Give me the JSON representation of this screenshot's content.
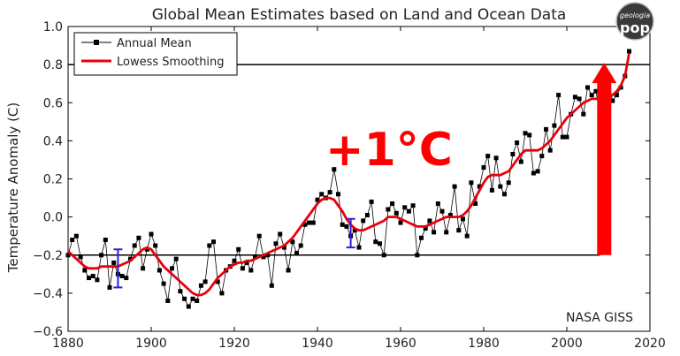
{
  "chart_data": {
    "type": "line",
    "title": "Global Mean Estimates based on Land and Ocean Data",
    "xlabel": "",
    "ylabel": "Temperature Anomaly (C)",
    "xlim": [
      1880,
      2020
    ],
    "ylim": [
      -0.6,
      1.0
    ],
    "grid": false,
    "legend_position": "top-left",
    "x_ticks": [
      "1880",
      "1900",
      "1920",
      "1940",
      "1960",
      "1980",
      "2000",
      "2020"
    ],
    "y_ticks": [
      "−0.6",
      "−0.4",
      "−0.2",
      "0.0",
      "0.2",
      "0.4",
      "0.6",
      "0.8",
      "1.0"
    ],
    "x": [
      1880,
      1881,
      1882,
      1883,
      1884,
      1885,
      1886,
      1887,
      1888,
      1889,
      1890,
      1891,
      1892,
      1893,
      1894,
      1895,
      1896,
      1897,
      1898,
      1899,
      1900,
      1901,
      1902,
      1903,
      1904,
      1905,
      1906,
      1907,
      1908,
      1909,
      1910,
      1911,
      1912,
      1913,
      1914,
      1915,
      1916,
      1917,
      1918,
      1919,
      1920,
      1921,
      1922,
      1923,
      1924,
      1925,
      1926,
      1927,
      1928,
      1929,
      1930,
      1931,
      1932,
      1933,
      1934,
      1935,
      1936,
      1937,
      1938,
      1939,
      1940,
      1941,
      1942,
      1943,
      1944,
      1945,
      1946,
      1947,
      1948,
      1949,
      1950,
      1951,
      1952,
      1953,
      1954,
      1955,
      1956,
      1957,
      1958,
      1959,
      1960,
      1961,
      1962,
      1963,
      1964,
      1965,
      1966,
      1967,
      1968,
      1969,
      1970,
      1971,
      1972,
      1973,
      1974,
      1975,
      1976,
      1977,
      1978,
      1979,
      1980,
      1981,
      1982,
      1983,
      1984,
      1985,
      1986,
      1987,
      1988,
      1989,
      1990,
      1991,
      1992,
      1993,
      1994,
      1995,
      1996,
      1997,
      1998,
      1999,
      2000,
      2001,
      2002,
      2003,
      2004,
      2005,
      2006,
      2007,
      2008,
      2009,
      2010,
      2011,
      2012,
      2013,
      2014,
      2015
    ],
    "series": [
      {
        "name": "Annual Mean",
        "color": "#000000",
        "marker": "square",
        "values": [
          -0.2,
          -0.12,
          -0.1,
          -0.21,
          -0.28,
          -0.32,
          -0.31,
          -0.33,
          -0.2,
          -0.12,
          -0.37,
          -0.24,
          -0.3,
          -0.31,
          -0.32,
          -0.22,
          -0.15,
          -0.11,
          -0.27,
          -0.17,
          -0.09,
          -0.15,
          -0.28,
          -0.35,
          -0.44,
          -0.27,
          -0.22,
          -0.39,
          -0.43,
          -0.47,
          -0.43,
          -0.44,
          -0.36,
          -0.34,
          -0.15,
          -0.13,
          -0.34,
          -0.4,
          -0.28,
          -0.26,
          -0.23,
          -0.17,
          -0.27,
          -0.24,
          -0.28,
          -0.21,
          -0.1,
          -0.21,
          -0.2,
          -0.36,
          -0.14,
          -0.09,
          -0.16,
          -0.28,
          -0.13,
          -0.19,
          -0.15,
          -0.04,
          -0.03,
          -0.03,
          0.09,
          0.12,
          0.1,
          0.13,
          0.25,
          0.12,
          -0.04,
          -0.05,
          -0.1,
          -0.07,
          -0.16,
          -0.02,
          0.01,
          0.08,
          -0.13,
          -0.14,
          -0.2,
          0.04,
          0.07,
          0.02,
          -0.03,
          0.05,
          0.03,
          0.06,
          -0.2,
          -0.11,
          -0.06,
          -0.02,
          -0.08,
          0.07,
          0.03,
          -0.08,
          0.01,
          0.16,
          -0.07,
          -0.01,
          -0.1,
          0.18,
          0.07,
          0.16,
          0.26,
          0.32,
          0.14,
          0.31,
          0.16,
          0.12,
          0.18,
          0.33,
          0.39,
          0.29,
          0.44,
          0.43,
          0.23,
          0.24,
          0.32,
          0.46,
          0.35,
          0.48,
          0.64,
          0.42,
          0.42,
          0.54,
          0.63,
          0.62,
          0.54,
          0.68,
          0.64,
          0.66,
          0.54,
          0.64,
          0.72,
          0.61,
          0.64,
          0.68,
          0.74,
          0.87
        ]
      },
      {
        "name": "Lowess Smoothing",
        "color": "#e8000b",
        "marker": "none",
        "values": [
          -0.18,
          -0.2,
          -0.22,
          -0.24,
          -0.26,
          -0.27,
          -0.27,
          -0.27,
          -0.26,
          -0.26,
          -0.26,
          -0.26,
          -0.26,
          -0.25,
          -0.24,
          -0.23,
          -0.21,
          -0.19,
          -0.17,
          -0.16,
          -0.17,
          -0.2,
          -0.23,
          -0.26,
          -0.28,
          -0.3,
          -0.32,
          -0.34,
          -0.36,
          -0.38,
          -0.4,
          -0.41,
          -0.41,
          -0.4,
          -0.38,
          -0.35,
          -0.32,
          -0.3,
          -0.28,
          -0.26,
          -0.25,
          -0.24,
          -0.24,
          -0.23,
          -0.23,
          -0.22,
          -0.21,
          -0.2,
          -0.19,
          -0.18,
          -0.17,
          -0.16,
          -0.15,
          -0.13,
          -0.11,
          -0.08,
          -0.05,
          -0.02,
          0.01,
          0.04,
          0.07,
          0.09,
          0.1,
          0.1,
          0.09,
          0.06,
          0.03,
          -0.01,
          -0.04,
          -0.06,
          -0.07,
          -0.07,
          -0.06,
          -0.05,
          -0.04,
          -0.03,
          -0.02,
          0.0,
          0.0,
          0.0,
          -0.01,
          -0.02,
          -0.03,
          -0.04,
          -0.05,
          -0.05,
          -0.05,
          -0.04,
          -0.03,
          -0.02,
          -0.01,
          0.0,
          0.0,
          0.0,
          0.0,
          0.01,
          0.03,
          0.06,
          0.1,
          0.14,
          0.18,
          0.21,
          0.22,
          0.22,
          0.22,
          0.23,
          0.24,
          0.27,
          0.3,
          0.33,
          0.35,
          0.35,
          0.35,
          0.35,
          0.36,
          0.38,
          0.4,
          0.43,
          0.46,
          0.49,
          0.52,
          0.54,
          0.56,
          0.58,
          0.6,
          0.61,
          0.62,
          0.62,
          0.62,
          0.62,
          0.63,
          0.64,
          0.66,
          0.69,
          0.74,
          0.86
        ]
      }
    ],
    "error_bars": [
      {
        "x": 1892,
        "low": -0.37,
        "high": -0.17
      },
      {
        "x": 1948,
        "low": -0.16,
        "high": -0.01
      }
    ],
    "reference_lines": [
      {
        "y": 0.8,
        "x_from": 1880,
        "x_to": 2020
      },
      {
        "y": -0.2,
        "x_from": 1880,
        "x_to": 2008
      }
    ],
    "arrow": {
      "x": 2009,
      "from_y": -0.2,
      "to_y": 0.8,
      "color": "#ff0000"
    },
    "annotation": {
      "text": "+1°C",
      "color": "#ff0000",
      "x": 1945,
      "y": 0.2
    },
    "source_label": "NASA GISS",
    "logo": {
      "line1": "geologia",
      "line2": "pop"
    }
  }
}
